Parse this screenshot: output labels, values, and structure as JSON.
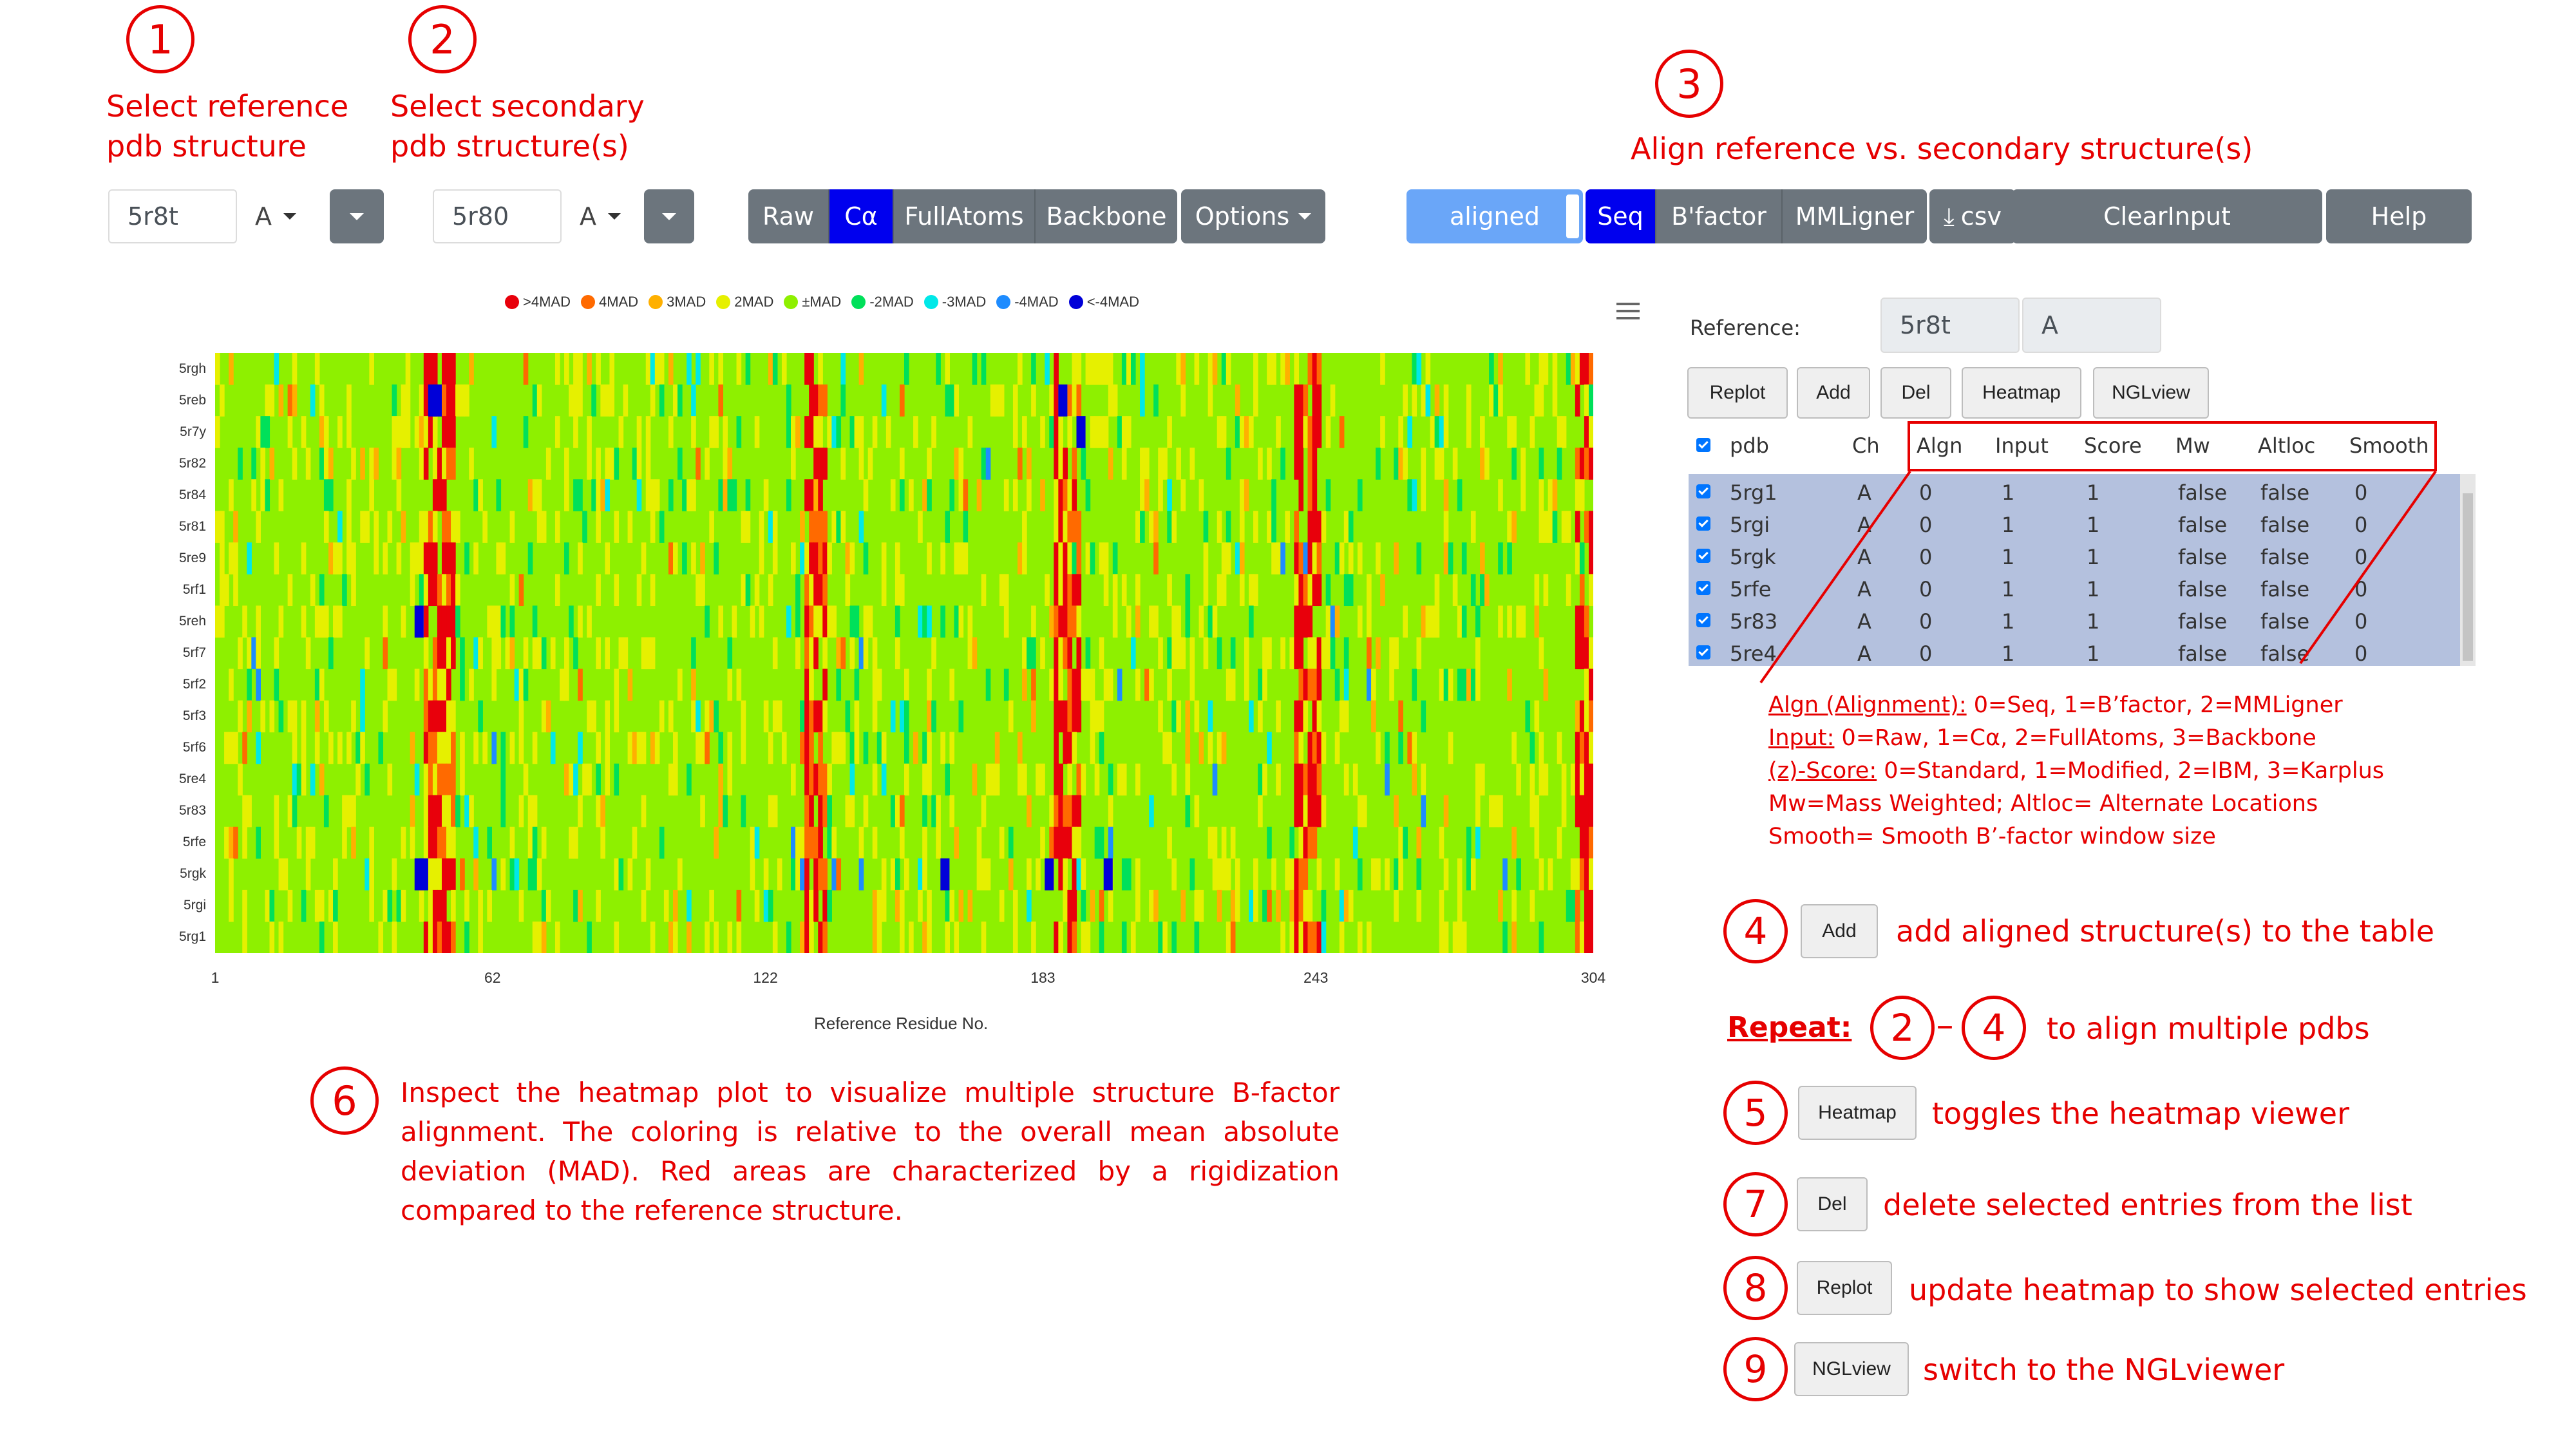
{
  "steps": {
    "s1": {
      "num": "1",
      "label_line1": "Select reference",
      "label_line2": "pdb structure"
    },
    "s2": {
      "num": "2",
      "label_line1": "Select secondary",
      "label_line2": "pdb structure(s)"
    },
    "s3": {
      "num": "3",
      "label": "Align reference vs. secondary structure(s)"
    },
    "s6": {
      "num": "6",
      "text": "Inspect the heatmap plot to visualize multiple structure B-factor alignment. The coloring is relative to the overall mean absolute deviation (MAD). Red areas are characterized by a rigidization compared to the reference structure."
    }
  },
  "controls": {
    "ref_pdb": "5r8t",
    "ref_chain": "A",
    "sec_pdb": "5r80",
    "sec_chain": "A",
    "input_modes": [
      "Raw",
      "Cα",
      "FullAtoms",
      "Backbone"
    ],
    "options_label": "Options",
    "aligned_label": "aligned",
    "align_modes": [
      "Seq",
      "B'factor",
      "MMLigner"
    ],
    "csv_label": "csv",
    "clear_label": "ClearInput",
    "help_label": "Help"
  },
  "legend": [
    {
      "label": ">4MAD",
      "color": "#e8000b"
    },
    {
      "label": "4MAD",
      "color": "#ff6a00"
    },
    {
      "label": "3MAD",
      "color": "#ffb000"
    },
    {
      "label": "2MAD",
      "color": "#e6f000"
    },
    {
      "label": "±MAD",
      "color": "#8ef000"
    },
    {
      "label": "-2MAD",
      "color": "#00e05a"
    },
    {
      "label": "-3MAD",
      "color": "#00e8e8"
    },
    {
      "label": "-4MAD",
      "color": "#1e8cff"
    },
    {
      "label": "<-4MAD",
      "color": "#0000d8"
    }
  ],
  "chart_data": {
    "type": "heatmap",
    "xlabel": "Reference Residue No.",
    "x_ticks": [
      "1",
      "62",
      "122",
      "183",
      "243",
      "304"
    ],
    "xlim": [
      1,
      304
    ],
    "y_categories": [
      "5rgh",
      "5reb",
      "5r7y",
      "5r82",
      "5r84",
      "5r81",
      "5re9",
      "5rf1",
      "5reh",
      "5rf7",
      "5rf2",
      "5rf3",
      "5rf6",
      "5re4",
      "5r83",
      "5rfe",
      "5rgk",
      "5rgi",
      "5rg1"
    ],
    "color_scale": [
      ">4MAD",
      "4MAD",
      "3MAD",
      "2MAD",
      "±MAD",
      "-2MAD",
      "-3MAD",
      "-4MAD",
      "<-4MAD"
    ],
    "dominant_value": "±MAD"
  },
  "panel": {
    "reference_label": "Reference:",
    "reference_pdb": "5r8t",
    "reference_chain": "A",
    "buttons": {
      "replot": "Replot",
      "add": "Add",
      "del": "Del",
      "heatmap": "Heatmap",
      "nglview": "NGLview"
    },
    "columns": [
      "pdb",
      "Ch",
      "Algn",
      "Input",
      "Score",
      "Mw",
      "Altloc",
      "Smooth"
    ],
    "rows": [
      {
        "pdb": "5rg1",
        "ch": "A",
        "algn": "0",
        "input": "1",
        "score": "1",
        "mw": "false",
        "altloc": "false",
        "smooth": "0"
      },
      {
        "pdb": "5rgi",
        "ch": "A",
        "algn": "0",
        "input": "1",
        "score": "1",
        "mw": "false",
        "altloc": "false",
        "smooth": "0"
      },
      {
        "pdb": "5rgk",
        "ch": "A",
        "algn": "0",
        "input": "1",
        "score": "1",
        "mw": "false",
        "altloc": "false",
        "smooth": "0"
      },
      {
        "pdb": "5rfe",
        "ch": "A",
        "algn": "0",
        "input": "1",
        "score": "1",
        "mw": "false",
        "altloc": "false",
        "smooth": "0"
      },
      {
        "pdb": "5r83",
        "ch": "A",
        "algn": "0",
        "input": "1",
        "score": "1",
        "mw": "false",
        "altloc": "false",
        "smooth": "0"
      },
      {
        "pdb": "5re4",
        "ch": "A",
        "algn": "0",
        "input": "1",
        "score": "1",
        "mw": "false",
        "altloc": "false",
        "smooth": "0"
      }
    ]
  },
  "notes": {
    "algn_key": "Algn (Alignment):",
    "algn_val": " 0=Seq, 1=B’factor, 2=MMLigner",
    "input_key": "Input:",
    "input_val": " 0=Raw, 1=Cα, 2=FullAtoms, 3=Backbone",
    "score_key": "(z)-Score:",
    "score_val": " 0=Standard, 1=Modified, 2=IBM, 3=Karplus",
    "mw_line": "Mw=Mass Weighted; Altloc= Alternate Locations",
    "smooth_line": "Smooth= Smooth B’-factor window size"
  },
  "help": {
    "h4": {
      "num": "4",
      "button": "Add",
      "text": "add aligned structure(s) to the table"
    },
    "repeat": {
      "label": "Repeat:",
      "from": "2",
      "dash": "–",
      "to": "4",
      "text": "to align multiple pdbs"
    },
    "h5": {
      "num": "5",
      "button": "Heatmap",
      "text": "toggles the heatmap viewer"
    },
    "h7": {
      "num": "7",
      "button": "Del",
      "text": "delete selected entries from the list"
    },
    "h8": {
      "num": "8",
      "button": "Replot",
      "text": "update heatmap to show selected entries"
    },
    "h9": {
      "num": "9",
      "button": "NGLview",
      "text": "switch to the NGLviewer"
    }
  },
  "menu_icon": "hamburger-menu-icon"
}
